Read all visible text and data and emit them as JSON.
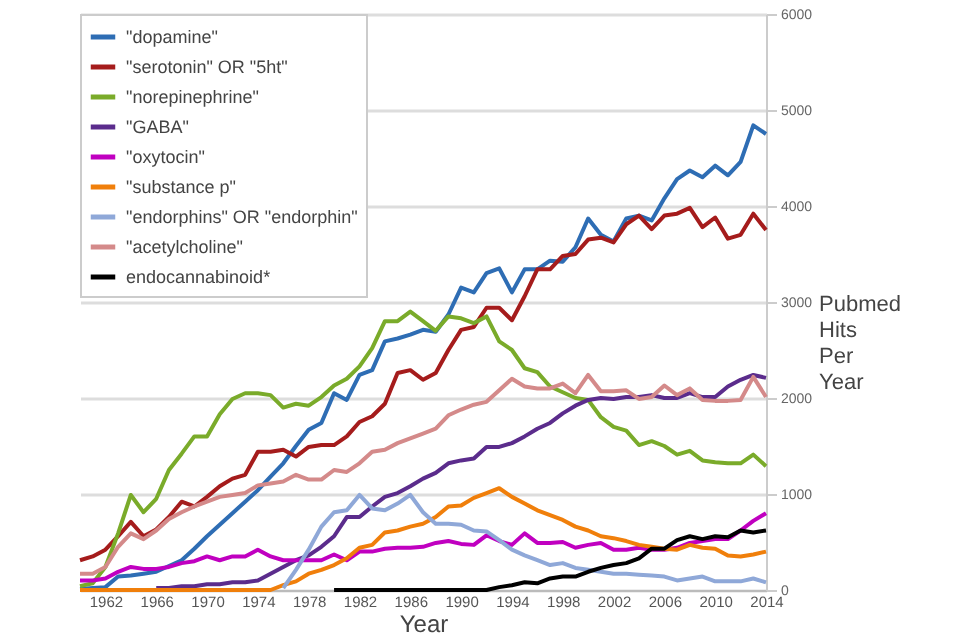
{
  "chart_data": {
    "type": "line",
    "xlabel": "Year",
    "ylabel": "Pubmed Hits Per Year",
    "x": [
      1960,
      1961,
      1962,
      1963,
      1964,
      1965,
      1966,
      1967,
      1968,
      1969,
      1970,
      1971,
      1972,
      1973,
      1974,
      1975,
      1976,
      1977,
      1978,
      1979,
      1980,
      1981,
      1982,
      1983,
      1984,
      1985,
      1986,
      1987,
      1988,
      1989,
      1990,
      1991,
      1992,
      1993,
      1994,
      1995,
      1996,
      1997,
      1998,
      1999,
      2000,
      2001,
      2002,
      2003,
      2004,
      2005,
      2006,
      2007,
      2008,
      2009,
      2010,
      2011,
      2012,
      2013,
      2014
    ],
    "xlim": [
      1960,
      2014
    ],
    "xticks": [
      1962,
      1966,
      1970,
      1974,
      1978,
      1982,
      1986,
      1990,
      1994,
      1998,
      2002,
      2006,
      2010,
      2014
    ],
    "ylim": [
      0,
      6000
    ],
    "yticks": [
      0,
      1000,
      2000,
      3000,
      4000,
      5000,
      6000
    ],
    "grid": "y",
    "legend": "top left",
    "line_style": "solid",
    "marker": "none",
    "series": [
      {
        "name": "\"dopamine\"",
        "color": "#2e6db4",
        "values": [
          10,
          20,
          30,
          140,
          150,
          170,
          190,
          250,
          310,
          430,
          560,
          680,
          800,
          920,
          1040,
          1180,
          1320,
          1500,
          1670,
          1740,
          2050,
          1980,
          2240,
          2290,
          2590,
          2620,
          2660,
          2710,
          2690,
          2870,
          3150,
          3100,
          3300,
          3350,
          3100,
          3340,
          3340,
          3430,
          3420,
          3570,
          3870,
          3700,
          3630,
          3870,
          3900,
          3850,
          4080,
          4280,
          4370,
          4300,
          4420,
          4320,
          4460,
          4840,
          4750
        ]
      },
      {
        "name": "\"serotonin\" OR \"5ht\"",
        "color": "#a51c1c",
        "values": [
          310,
          350,
          420,
          560,
          710,
          560,
          630,
          760,
          920,
          870,
          970,
          1080,
          1160,
          1200,
          1440,
          1440,
          1460,
          1390,
          1490,
          1510,
          1510,
          1600,
          1750,
          1810,
          1940,
          2260,
          2290,
          2190,
          2260,
          2500,
          2710,
          2740,
          2940,
          2940,
          2810,
          3060,
          3340,
          3340,
          3480,
          3500,
          3650,
          3670,
          3620,
          3810,
          3900,
          3760,
          3900,
          3920,
          3980,
          3780,
          3880,
          3660,
          3700,
          3920,
          3750
        ]
      },
      {
        "name": "\"norepinephrine\"",
        "color": "#7aab2a",
        "values": [
          40,
          70,
          240,
          590,
          990,
          810,
          950,
          1250,
          1420,
          1600,
          1600,
          1830,
          1990,
          2050,
          2050,
          2030,
          1900,
          1940,
          1920,
          2010,
          2130,
          2200,
          2330,
          2520,
          2800,
          2800,
          2900,
          2800,
          2700,
          2850,
          2830,
          2780,
          2850,
          2590,
          2500,
          2310,
          2270,
          2120,
          2060,
          2000,
          1980,
          1800,
          1700,
          1660,
          1510,
          1550,
          1500,
          1410,
          1450,
          1350,
          1330,
          1320,
          1320,
          1410,
          1290
        ]
      },
      {
        "name": "\"GABA\"",
        "color": "#5b2c8c",
        "values": [
          null,
          null,
          null,
          null,
          null,
          null,
          20,
          20,
          40,
          40,
          60,
          60,
          80,
          80,
          100,
          170,
          240,
          310,
          360,
          450,
          560,
          760,
          760,
          870,
          970,
          1010,
          1080,
          1160,
          1220,
          1320,
          1350,
          1370,
          1490,
          1490,
          1530,
          1600,
          1680,
          1740,
          1840,
          1920,
          1980,
          2000,
          1990,
          2010,
          2010,
          2030,
          2000,
          2000,
          2050,
          2010,
          2010,
          2120,
          2190,
          2240,
          2210
        ]
      },
      {
        "name": "\"oxytocin\"",
        "color": "#c000c0",
        "values": [
          100,
          100,
          120,
          190,
          240,
          220,
          220,
          240,
          280,
          300,
          350,
          310,
          350,
          350,
          420,
          350,
          310,
          310,
          310,
          310,
          370,
          310,
          400,
          400,
          430,
          440,
          440,
          450,
          490,
          510,
          480,
          470,
          570,
          510,
          470,
          590,
          490,
          490,
          500,
          440,
          470,
          490,
          420,
          420,
          440,
          420,
          420,
          440,
          490,
          510,
          530,
          530,
          620,
          720,
          800
        ]
      },
      {
        "name": "\"substance p\"",
        "color": "#f07f0b",
        "values": [
          0,
          0,
          0,
          0,
          0,
          0,
          0,
          0,
          0,
          0,
          0,
          0,
          0,
          0,
          0,
          0,
          50,
          90,
          170,
          210,
          260,
          330,
          440,
          470,
          600,
          620,
          660,
          690,
          760,
          870,
          880,
          960,
          1010,
          1060,
          970,
          900,
          830,
          780,
          730,
          660,
          620,
          560,
          540,
          510,
          470,
          450,
          430,
          420,
          470,
          440,
          430,
          360,
          350,
          370,
          400
        ]
      },
      {
        "name": "\"endorphins\" OR \"endorphin\"",
        "color": "#8fa8d8",
        "values": [
          null,
          null,
          null,
          null,
          null,
          null,
          null,
          null,
          null,
          null,
          null,
          null,
          null,
          null,
          null,
          null,
          20,
          210,
          420,
          660,
          810,
          830,
          990,
          850,
          830,
          900,
          990,
          810,
          690,
          690,
          680,
          620,
          610,
          520,
          420,
          360,
          310,
          260,
          280,
          230,
          210,
          190,
          170,
          170,
          160,
          150,
          140,
          100,
          120,
          140,
          90,
          90,
          90,
          120,
          80
        ]
      },
      {
        "name": "\"acetylcholine\"",
        "color": "#d48a8a",
        "values": [
          170,
          170,
          240,
          450,
          590,
          530,
          620,
          740,
          810,
          870,
          920,
          970,
          990,
          1010,
          1090,
          1110,
          1130,
          1200,
          1150,
          1150,
          1250,
          1230,
          1320,
          1440,
          1460,
          1530,
          1580,
          1630,
          1680,
          1820,
          1880,
          1930,
          1960,
          2080,
          2200,
          2120,
          2100,
          2100,
          2150,
          2050,
          2240,
          2070,
          2070,
          2080,
          1990,
          2010,
          2130,
          2030,
          2100,
          1980,
          1970,
          1970,
          1980,
          2220,
          2010
        ]
      },
      {
        "name": "endocannabinoid*",
        "color": "#000000",
        "values": [
          null,
          null,
          null,
          null,
          null,
          null,
          null,
          null,
          null,
          null,
          null,
          null,
          null,
          null,
          null,
          null,
          null,
          null,
          null,
          null,
          0,
          0,
          0,
          0,
          0,
          0,
          0,
          0,
          0,
          0,
          0,
          0,
          0,
          30,
          50,
          80,
          70,
          120,
          140,
          140,
          190,
          230,
          260,
          280,
          330,
          430,
          430,
          520,
          560,
          530,
          560,
          550,
          620,
          600,
          620
        ]
      }
    ]
  }
}
